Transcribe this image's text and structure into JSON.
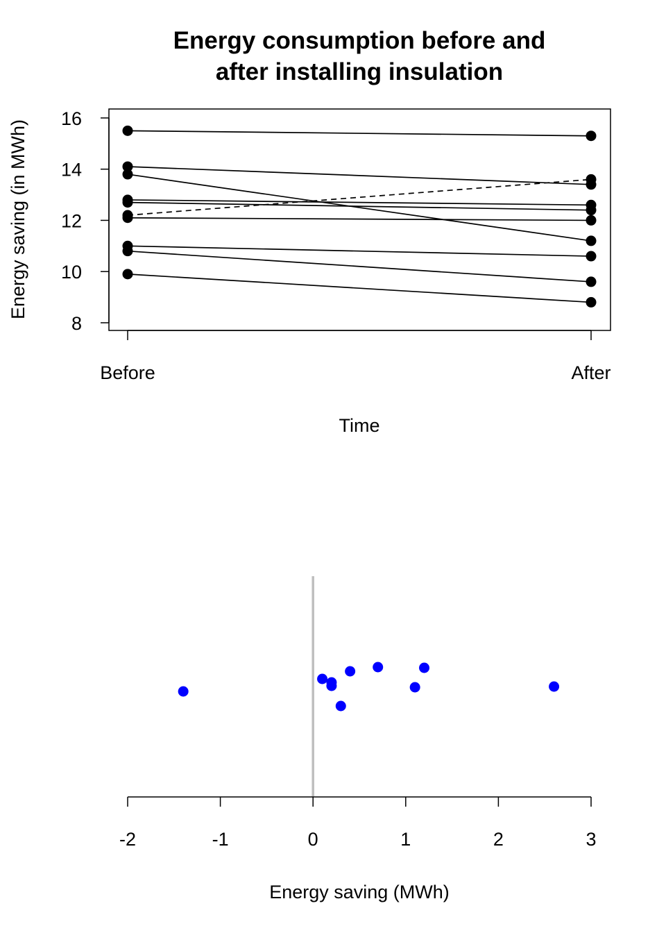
{
  "chart_data": [
    {
      "type": "slope",
      "title": [
        "Energy consumption before and",
        "after installing insulation"
      ],
      "x_label": "Time",
      "y_label": "Energy saving (in MWh)",
      "categories": [
        "Before",
        "After"
      ],
      "ylim": [
        7.7,
        16.35
      ],
      "yticks": [
        8,
        10,
        12,
        14,
        16
      ],
      "series": [
        {
          "color": "#000000",
          "values": [
            15.5,
            15.3
          ]
        },
        {
          "color": "#000000",
          "values": [
            14.1,
            13.4
          ]
        },
        {
          "color": "#000000",
          "values": [
            13.8,
            11.2
          ]
        },
        {
          "color": "#000000",
          "values": [
            12.8,
            12.6
          ]
        },
        {
          "color": "#000000",
          "values": [
            12.7,
            12.4
          ]
        },
        {
          "color": "#000000",
          "values": [
            12.2,
            13.6
          ],
          "dashed": true
        },
        {
          "color": "#000000",
          "values": [
            12.1,
            12.0
          ]
        },
        {
          "color": "#000000",
          "values": [
            11.0,
            10.6
          ]
        },
        {
          "color": "#000000",
          "values": [
            10.8,
            9.6
          ]
        },
        {
          "color": "#000000",
          "values": [
            9.9,
            8.8
          ]
        }
      ]
    },
    {
      "type": "strip",
      "x_label": "Energy saving (MWh)",
      "xlim": [
        -2,
        3
      ],
      "xticks": [
        -2,
        -1,
        0,
        1,
        2,
        3
      ],
      "vline": 0,
      "vline_color": "#bebebe",
      "color": "#0000ff",
      "x": [
        0.2,
        0.7,
        2.6,
        0.2,
        0.3,
        -1.4,
        0.1,
        0.4,
        1.2,
        1.1
      ]
    }
  ]
}
